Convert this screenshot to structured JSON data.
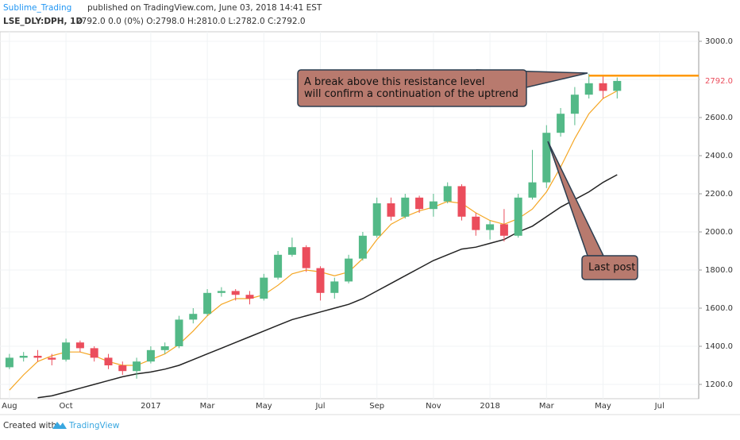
{
  "header": {
    "author": "Sublime_Trading",
    "published": "published on TradingView.com, June 03, 2018 14:41 EST",
    "symbol": "LSE_DLY:DPH, 1D",
    "quote": "2792.0 0.0 (0%) O:2798.0 H:2810.0 L:2782.0 C:2792.0"
  },
  "footer": {
    "created": "Created with",
    "brand": "TradingView"
  },
  "chart_data": {
    "type": "candlestick",
    "categories": [
      "Aug",
      null,
      null,
      null,
      "Oct",
      null,
      null,
      null,
      null,
      null,
      "2017",
      null,
      null,
      null,
      "Mar",
      null,
      null,
      null,
      "May",
      null,
      null,
      null,
      "Jul",
      null,
      null,
      null,
      "Sep",
      null,
      null,
      null,
      "Nov",
      null,
      null,
      null,
      "2018",
      null,
      null,
      null,
      "Mar",
      null,
      null,
      null,
      "May",
      null,
      null,
      null,
      "Jul",
      null
    ],
    "open": [
      1290,
      1340,
      1350,
      1340,
      1330,
      1420,
      1390,
      1340,
      1300,
      1270,
      1320,
      1380,
      1400,
      1540,
      1570,
      1680,
      1690,
      1670,
      1650,
      1760,
      1880,
      1920,
      1810,
      1680,
      1740,
      1860,
      1980,
      2150,
      2080,
      2180,
      2120,
      2160,
      2240,
      2080,
      2010,
      2040,
      1980,
      2180,
      2260,
      2520,
      2620,
      2720,
      2780,
      2740,
      null,
      null,
      null,
      null
    ],
    "high": [
      1360,
      1370,
      1380,
      1360,
      1440,
      1430,
      1400,
      1360,
      1320,
      1340,
      1400,
      1420,
      1560,
      1600,
      1700,
      1710,
      1700,
      1690,
      1780,
      1900,
      1970,
      1930,
      1820,
      1760,
      1880,
      2000,
      2180,
      2180,
      2200,
      2190,
      2200,
      2260,
      2250,
      2100,
      2060,
      2120,
      2200,
      2430,
      2560,
      2650,
      2760,
      2830,
      2820,
      2810,
      null,
      null,
      null,
      null
    ],
    "low": [
      1280,
      1320,
      1320,
      1300,
      1320,
      1370,
      1320,
      1280,
      1250,
      1230,
      1310,
      1360,
      1390,
      1520,
      1560,
      1660,
      1640,
      1620,
      1640,
      1750,
      1870,
      1790,
      1640,
      1650,
      1730,
      1850,
      1970,
      2060,
      2070,
      2100,
      2080,
      2150,
      2060,
      1980,
      1960,
      1950,
      1970,
      2170,
      2230,
      2500,
      2560,
      2700,
      2700,
      2700,
      null,
      null,
      null,
      null
    ],
    "close": [
      1340,
      1350,
      1340,
      1330,
      1420,
      1390,
      1340,
      1300,
      1270,
      1320,
      1380,
      1400,
      1540,
      1570,
      1680,
      1690,
      1670,
      1650,
      1760,
      1880,
      1920,
      1810,
      1680,
      1740,
      1860,
      1980,
      2150,
      2080,
      2180,
      2120,
      2160,
      2240,
      2080,
      2010,
      2040,
      1980,
      2180,
      2260,
      2520,
      2620,
      2720,
      2780,
      2740,
      2792,
      null,
      null,
      null,
      null
    ],
    "up_color": "#53b987",
    "down_color": "#eb4d5c",
    "series": [
      {
        "color": "#f5a623",
        "values": [
          1170,
          1250,
          1320,
          1350,
          1370,
          1370,
          1350,
          1320,
          1300,
          1300,
          1330,
          1360,
          1410,
          1480,
          1560,
          1620,
          1650,
          1650,
          1670,
          1720,
          1780,
          1800,
          1790,
          1770,
          1790,
          1860,
          1960,
          2040,
          2080,
          2110,
          2130,
          2160,
          2150,
          2100,
          2060,
          2040,
          2070,
          2120,
          2210,
          2340,
          2490,
          2620,
          2700,
          2740,
          null,
          null,
          null,
          null
        ]
      },
      {
        "color": "#222222",
        "values": [
          null,
          null,
          1130,
          1140,
          1160,
          1180,
          1200,
          1220,
          1240,
          1255,
          1265,
          1280,
          1300,
          1330,
          1360,
          1390,
          1420,
          1450,
          1480,
          1510,
          1540,
          1560,
          1580,
          1600,
          1620,
          1650,
          1690,
          1730,
          1770,
          1810,
          1850,
          1880,
          1910,
          1920,
          1940,
          1960,
          2000,
          2030,
          2080,
          2130,
          2170,
          2210,
          2260,
          2300,
          null,
          null,
          null,
          null
        ]
      }
    ],
    "resistance": {
      "value": 2820,
      "color": "#ff9800"
    },
    "last_price": {
      "value": 2792,
      "label": "2792.0"
    },
    "ylim": [
      1125,
      3050
    ],
    "yticks": [
      {
        "value": 1200,
        "label": "1200.0"
      },
      {
        "value": 1400,
        "label": "1400.0"
      },
      {
        "value": 1600,
        "label": "1600.0"
      },
      {
        "value": 1800,
        "label": "1800.0"
      },
      {
        "value": 2000,
        "label": "2000.0"
      },
      {
        "value": 2200,
        "label": "2200.0"
      },
      {
        "value": 2400,
        "label": "2400.0"
      },
      {
        "value": 2600,
        "label": "2600.0"
      },
      {
        "value": 2800,
        "label": "2800.0"
      },
      {
        "value": 3000,
        "label": "3000.0"
      }
    ],
    "grid": true,
    "annotations": [
      {
        "lines": [
          "A break above this resistance level",
          "will confirm a continuation of the uptrend"
        ]
      },
      {
        "lines": [
          "Last post"
        ]
      }
    ]
  }
}
